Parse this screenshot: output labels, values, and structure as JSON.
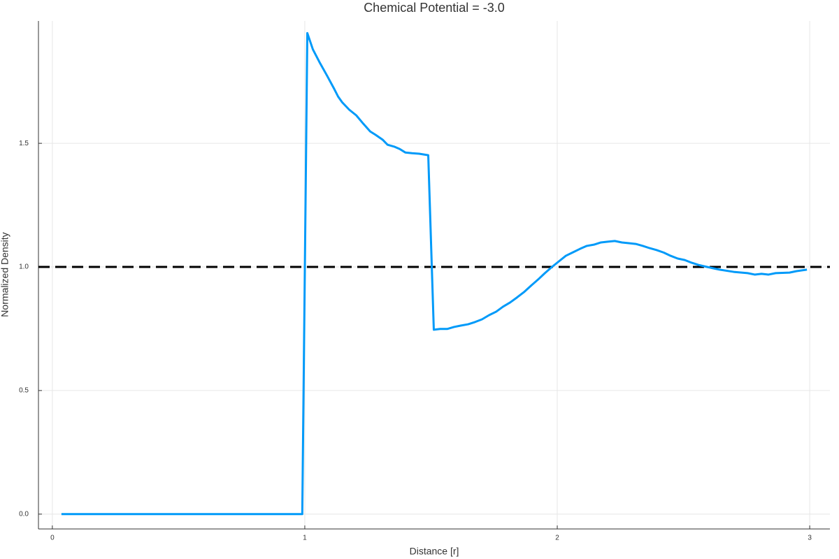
{
  "chart_data": {
    "type": "line",
    "title": "Chemical Potential = -3.0",
    "xlabel": "Distance [r]",
    "ylabel": "Normalized Density",
    "xlim": [
      -0.055,
      3.08
    ],
    "ylim": [
      -0.06,
      1.995
    ],
    "xticks": [
      0,
      1,
      2,
      3
    ],
    "yticks": [
      {
        "value": 0,
        "label": "0.0"
      },
      0.5,
      {
        "value": 1,
        "label": "1.0"
      },
      1.5
    ],
    "grid": true,
    "hline": {
      "value": 1,
      "color": "#000000"
    },
    "x": [
      0.036,
      0.99,
      1.01,
      1.032,
      1.06,
      1.088,
      1.115,
      1.132,
      1.148,
      1.176,
      1.204,
      1.232,
      1.259,
      1.281,
      1.309,
      1.328,
      1.356,
      1.376,
      1.398,
      1.425,
      1.453,
      1.489,
      1.511,
      1.536,
      1.564,
      1.591,
      1.619,
      1.647,
      1.674,
      1.702,
      1.73,
      1.758,
      1.785,
      1.813,
      1.84,
      1.868,
      1.896,
      1.924,
      1.951,
      1.979,
      2.007,
      2.034,
      2.062,
      2.09,
      2.117,
      2.145,
      2.173,
      2.2,
      2.228,
      2.256,
      2.283,
      2.311,
      2.339,
      2.366,
      2.394,
      2.422,
      2.449,
      2.477,
      2.505,
      2.532,
      2.56,
      2.593,
      2.643,
      2.699,
      2.754,
      2.782,
      2.809,
      2.837,
      2.865,
      2.92,
      2.948,
      2.989
    ],
    "series": [
      {
        "name": "density",
        "color": "#009af9",
        "values": [
          0,
          0,
          1.946,
          1.88,
          1.825,
          1.774,
          1.723,
          1.689,
          1.666,
          1.636,
          1.613,
          1.579,
          1.548,
          1.534,
          1.514,
          1.494,
          1.486,
          1.477,
          1.463,
          1.46,
          1.458,
          1.452,
          0.746,
          0.749,
          0.749,
          0.757,
          0.763,
          0.768,
          0.777,
          0.788,
          0.805,
          0.819,
          0.839,
          0.856,
          0.876,
          0.898,
          0.924,
          0.949,
          0.975,
          1.0,
          1.023,
          1.045,
          1.059,
          1.073,
          1.085,
          1.09,
          1.099,
          1.102,
          1.105,
          1.099,
          1.096,
          1.093,
          1.085,
          1.076,
          1.068,
          1.058,
          1.045,
          1.034,
          1.028,
          1.017,
          1.008,
          1.0,
          0.989,
          0.98,
          0.975,
          0.969,
          0.972,
          0.969,
          0.975,
          0.977,
          0.983,
          0.989
        ]
      }
    ]
  }
}
